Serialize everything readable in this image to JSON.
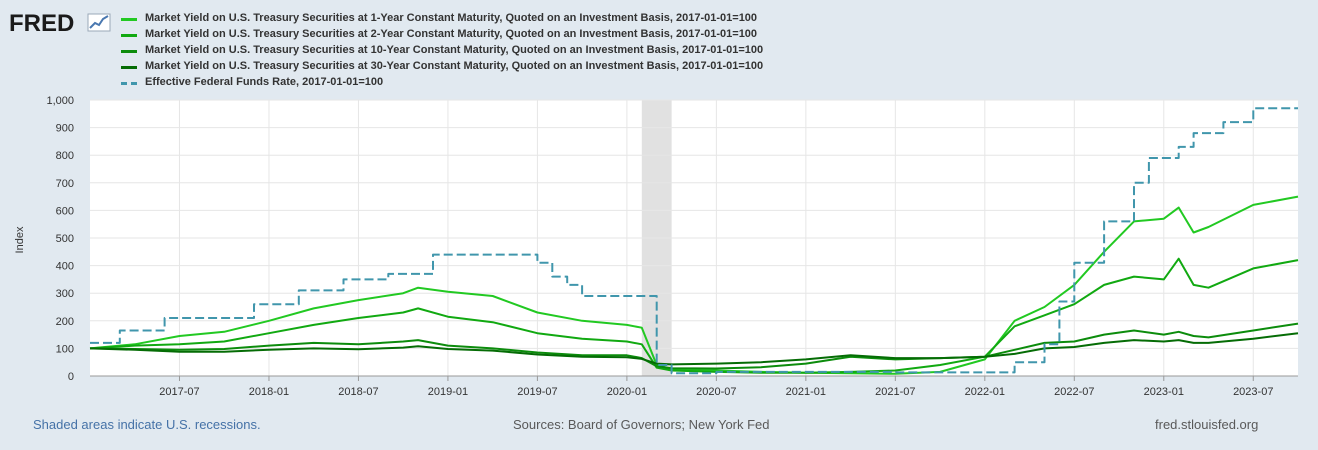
{
  "header": {
    "logo_text": "FRED",
    "logo_icon": "trend-line-chart-icon"
  },
  "footer": {
    "recession_note": "Shaded areas indicate U.S. recessions.",
    "sources": "Sources: Board of Governors; New York Fed",
    "site": "fred.stlouisfed.org"
  },
  "colors": {
    "background": "#e1e9f0",
    "plot_background": "#ffffff",
    "grid": "#e6e6e6",
    "recession_shade": "#e1e1e1",
    "ust1y": "#22c922",
    "ust2y": "#11a911",
    "ust10y": "#0c8c0c",
    "ust30y": "#056c05",
    "fedfunds": "#4096ac"
  },
  "chart_data": {
    "type": "line",
    "title": "",
    "xlabel": "",
    "ylabel": "Index",
    "ylim": [
      0,
      1000
    ],
    "yticks": [
      0,
      100,
      200,
      300,
      400,
      500,
      600,
      700,
      800,
      900,
      1000
    ],
    "ytick_labels": [
      "0",
      "100",
      "200",
      "300",
      "400",
      "500",
      "600",
      "700",
      "800",
      "900",
      "1,000"
    ],
    "xlim": [
      "2017-01",
      "2023-10"
    ],
    "xticks": [
      "2017-07",
      "2018-01",
      "2018-07",
      "2019-01",
      "2019-07",
      "2020-01",
      "2020-07",
      "2021-01",
      "2021-07",
      "2022-01",
      "2022-07",
      "2023-01",
      "2023-07"
    ],
    "legend_position": "top",
    "recessions": [
      {
        "start": "2020-02",
        "end": "2020-04"
      }
    ],
    "series": [
      {
        "name": "Market Yield on U.S. Treasury Securities at 1-Year Constant Maturity, Quoted on an Investment Basis, 2017-01-01=100",
        "key": "ust1y",
        "dash": "solid",
        "x": [
          "2017-01",
          "2017-04",
          "2017-07",
          "2017-10",
          "2018-01",
          "2018-04",
          "2018-07",
          "2018-10",
          "2018-11",
          "2019-01",
          "2019-04",
          "2019-07",
          "2019-10",
          "2020-01",
          "2020-02",
          "2020-03",
          "2020-04",
          "2020-07",
          "2020-10",
          "2021-01",
          "2021-04",
          "2021-07",
          "2021-10",
          "2022-01",
          "2022-03",
          "2022-05",
          "2022-07",
          "2022-09",
          "2022-11",
          "2023-01",
          "2023-02",
          "2023-03",
          "2023-04",
          "2023-07",
          "2023-10"
        ],
        "values": [
          100,
          115,
          145,
          160,
          200,
          245,
          275,
          300,
          320,
          305,
          290,
          230,
          200,
          185,
          175,
          40,
          25,
          20,
          15,
          12,
          10,
          8,
          15,
          60,
          200,
          250,
          330,
          450,
          560,
          570,
          610,
          520,
          540,
          620,
          650
        ]
      },
      {
        "name": "Market Yield on U.S. Treasury Securities at 2-Year Constant Maturity, Quoted on an Investment Basis, 2017-01-01=100",
        "key": "ust2y",
        "dash": "solid",
        "x": [
          "2017-01",
          "2017-04",
          "2017-07",
          "2017-10",
          "2018-01",
          "2018-04",
          "2018-07",
          "2018-10",
          "2018-11",
          "2019-01",
          "2019-04",
          "2019-07",
          "2019-10",
          "2020-01",
          "2020-02",
          "2020-03",
          "2020-04",
          "2020-07",
          "2020-10",
          "2021-01",
          "2021-04",
          "2021-07",
          "2021-10",
          "2022-01",
          "2022-03",
          "2022-05",
          "2022-07",
          "2022-09",
          "2022-11",
          "2023-01",
          "2023-02",
          "2023-03",
          "2023-04",
          "2023-07",
          "2023-10"
        ],
        "values": [
          100,
          110,
          115,
          125,
          155,
          185,
          210,
          230,
          245,
          215,
          195,
          155,
          135,
          125,
          115,
          30,
          20,
          15,
          12,
          12,
          15,
          20,
          40,
          70,
          180,
          220,
          260,
          330,
          360,
          350,
          425,
          330,
          320,
          390,
          420
        ]
      },
      {
        "name": "Market Yield on U.S. Treasury Securities at 10-Year Constant Maturity, Quoted on an Investment Basis, 2017-01-01=100",
        "key": "ust10y",
        "dash": "solid",
        "x": [
          "2017-01",
          "2017-04",
          "2017-07",
          "2017-10",
          "2018-01",
          "2018-04",
          "2018-07",
          "2018-10",
          "2018-11",
          "2019-01",
          "2019-04",
          "2019-07",
          "2019-10",
          "2020-01",
          "2020-02",
          "2020-03",
          "2020-04",
          "2020-07",
          "2020-10",
          "2021-01",
          "2021-04",
          "2021-07",
          "2021-10",
          "2022-01",
          "2022-03",
          "2022-05",
          "2022-07",
          "2022-09",
          "2022-11",
          "2023-01",
          "2023-02",
          "2023-03",
          "2023-04",
          "2023-07",
          "2023-10"
        ],
        "values": [
          100,
          98,
          95,
          98,
          110,
          120,
          115,
          125,
          130,
          110,
          100,
          85,
          75,
          75,
          65,
          35,
          28,
          27,
          32,
          45,
          70,
          60,
          65,
          70,
          95,
          120,
          125,
          150,
          165,
          150,
          160,
          145,
          140,
          165,
          190
        ]
      },
      {
        "name": "Market Yield on U.S. Treasury Securities at 30-Year Constant Maturity, Quoted on an Investment Basis, 2017-01-01=100",
        "key": "ust30y",
        "dash": "solid",
        "x": [
          "2017-01",
          "2017-04",
          "2017-07",
          "2017-10",
          "2018-01",
          "2018-04",
          "2018-07",
          "2018-10",
          "2018-11",
          "2019-01",
          "2019-04",
          "2019-07",
          "2019-10",
          "2020-01",
          "2020-02",
          "2020-03",
          "2020-04",
          "2020-07",
          "2020-10",
          "2021-01",
          "2021-04",
          "2021-07",
          "2021-10",
          "2022-01",
          "2022-03",
          "2022-05",
          "2022-07",
          "2022-09",
          "2022-11",
          "2023-01",
          "2023-02",
          "2023-03",
          "2023-04",
          "2023-07",
          "2023-10"
        ],
        "values": [
          100,
          95,
          88,
          88,
          95,
          100,
          97,
          103,
          108,
          98,
          92,
          78,
          70,
          68,
          62,
          45,
          42,
          45,
          50,
          60,
          75,
          65,
          65,
          70,
          80,
          100,
          105,
          120,
          130,
          125,
          130,
          120,
          120,
          135,
          155
        ]
      },
      {
        "name": "Effective Federal Funds Rate, 2017-01-01=100",
        "key": "fedfunds",
        "dash": "dash",
        "x": [
          "2017-01",
          "2017-03",
          "2017-06",
          "2017-12",
          "2018-03",
          "2018-06",
          "2018-09",
          "2018-12",
          "2019-07",
          "2019-08",
          "2019-09",
          "2019-10",
          "2020-03",
          "2020-04",
          "2020-07",
          "2021-07",
          "2022-03",
          "2022-05",
          "2022-06",
          "2022-07",
          "2022-09",
          "2022-11",
          "2022-12",
          "2023-02",
          "2023-03",
          "2023-05",
          "2023-07",
          "2023-10"
        ],
        "values": [
          120,
          165,
          210,
          260,
          310,
          350,
          370,
          440,
          410,
          360,
          330,
          290,
          40,
          10,
          15,
          13,
          50,
          115,
          270,
          410,
          560,
          700,
          790,
          830,
          880,
          920,
          970,
          970
        ]
      }
    ]
  }
}
